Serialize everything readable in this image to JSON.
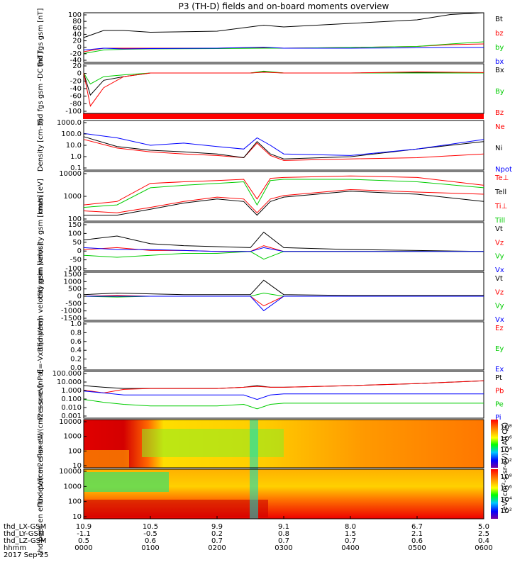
{
  "title": "P3 (TH-D) fields and on-board moments overview",
  "colorbar_label": "[eV/(cm²-s-sr-eV)] (All Qs)",
  "colorbar_ticks": [
    "10⁸",
    "10⁶",
    "10⁴",
    "10²"
  ],
  "bottom": {
    "labels": [
      "thd_LX-GSM",
      "thd_LY-GSM",
      "thd_LZ-GSM",
      "hhmm"
    ],
    "date": "2017 Sep 25",
    "columns": [
      {
        "lx": "10.9",
        "ly": "-1.1",
        "lz": "0.5",
        "hhmm": "0000"
      },
      {
        "lx": "10.5",
        "ly": "-0.5",
        "lz": "0.6",
        "hhmm": "0100"
      },
      {
        "lx": "9.9",
        "ly": "0.2",
        "lz": "0.7",
        "hhmm": "0200"
      },
      {
        "lx": "9.1",
        "ly": "0.8",
        "lz": "0.7",
        "hhmm": "0300"
      },
      {
        "lx": "8.0",
        "ly": "1.5",
        "lz": "0.7",
        "hhmm": "0400"
      },
      {
        "lx": "6.7",
        "ly": "2.1",
        "lz": "0.6",
        "hhmm": "0500"
      },
      {
        "lx": "5.0",
        "ly": "2.5",
        "lz": "0.4",
        "hhmm": "0600"
      }
    ]
  },
  "chart_data": [
    {
      "type": "line",
      "ylabel": "thd fgs gsm [nT]",
      "yticks": [
        "100",
        "80",
        "60",
        "40",
        "20",
        "0",
        "-20",
        "-40"
      ],
      "ylim": [
        -40,
        100
      ],
      "x": [
        0,
        0.3,
        0.6,
        1,
        2,
        2.7,
        3,
        4,
        5,
        5.5,
        6
      ],
      "series": [
        {
          "name": "Bt",
          "color": "#000000",
          "values": [
            30,
            50,
            50,
            45,
            48,
            65,
            60,
            70,
            80,
            95,
            100
          ]
        },
        {
          "name": "bz",
          "color": "#ff0000",
          "values": [
            -10,
            0,
            0,
            0,
            0,
            2,
            0,
            2,
            5,
            10,
            12
          ]
        },
        {
          "name": "by",
          "color": "#00cc00",
          "values": [
            -15,
            -5,
            -3,
            -2,
            -1,
            0,
            0,
            2,
            5,
            12,
            18
          ]
        },
        {
          "name": "bx",
          "color": "#0000ff",
          "values": [
            -5,
            0,
            -2,
            -1,
            0,
            3,
            0,
            0,
            1,
            2,
            2
          ]
        }
      ]
    },
    {
      "type": "line",
      "ylabel": "thd fgs gsm -DC [nT]",
      "yticks": [
        "20",
        "0",
        "-20",
        "-40",
        "-60",
        "-80",
        "-100"
      ],
      "ylim": [
        -110,
        25
      ],
      "x": [
        0,
        0.1,
        0.3,
        0.6,
        1,
        2.5,
        2.7,
        3,
        4,
        5,
        6
      ],
      "series": [
        {
          "name": "Bx",
          "color": "#000000",
          "values": [
            0,
            -60,
            -20,
            -10,
            0,
            0,
            3,
            0,
            0,
            2,
            0
          ]
        },
        {
          "name": "By",
          "color": "#00cc00",
          "values": [
            0,
            -30,
            -10,
            -5,
            0,
            0,
            5,
            0,
            0,
            0,
            0
          ]
        },
        {
          "name": "Bz",
          "color": "#ff0000",
          "values": [
            0,
            -90,
            -40,
            -10,
            0,
            0,
            2,
            0,
            0,
            3,
            1
          ]
        }
      ]
    },
    {
      "type": "line",
      "ylabel": "Density [cm-3]",
      "yticks": [
        "1000.0",
        "100.0",
        "10.0",
        "1.0",
        "0.1"
      ],
      "scale": "log",
      "ylim": [
        0.1,
        1000
      ],
      "x": [
        0,
        0.5,
        1,
        1.5,
        2,
        2.4,
        2.6,
        2.8,
        3,
        4,
        5,
        6
      ],
      "series": [
        {
          "name": "Ne",
          "color": "#ff0000",
          "values": [
            30,
            6,
            3,
            2,
            1.5,
            1,
            15,
            1.5,
            0.6,
            0.8,
            1,
            2
          ]
        },
        {
          "name": "Ni",
          "color": "#000000",
          "values": [
            50,
            8,
            4,
            3,
            2,
            1,
            20,
            2,
            0.8,
            1.2,
            5,
            20
          ]
        },
        {
          "name": "Npot",
          "color": "#0000ff",
          "values": [
            90,
            40,
            10,
            15,
            8,
            5,
            40,
            10,
            2,
            1.5,
            5,
            30
          ]
        }
      ]
    },
    {
      "type": "line",
      "ylabel": "mom [eV]",
      "yticks": [
        "10000",
        "1000",
        "100"
      ],
      "scale": "log",
      "ylim": [
        30,
        10000
      ],
      "x": [
        0,
        0.5,
        1,
        1.5,
        2,
        2.4,
        2.6,
        2.8,
        3,
        4,
        5,
        6
      ],
      "series": [
        {
          "name": "Te⊥",
          "color": "#ff0000",
          "values": [
            100,
            80,
            150,
            300,
            500,
            400,
            80,
            400,
            600,
            1200,
            900,
            700
          ]
        },
        {
          "name": "Tell",
          "color": "#000000",
          "values": [
            60,
            60,
            120,
            250,
            400,
            300,
            60,
            300,
            500,
            1000,
            700,
            300
          ]
        },
        {
          "name": "Ti⊥",
          "color": "#ff0000",
          "values": [
            200,
            300,
            2500,
            3000,
            3500,
            4000,
            400,
            4500,
            5000,
            6000,
            5000,
            2000
          ]
        },
        {
          "name": "Till",
          "color": "#00cc00",
          "values": [
            150,
            200,
            1500,
            2000,
            2500,
            3000,
            200,
            3500,
            4000,
            4000,
            3000,
            1500
          ]
        }
      ]
    },
    {
      "type": "line",
      "ylabel": "thd peim velocity gsm [km/s]",
      "yticks": [
        "150",
        "100",
        "50",
        "0",
        "-50",
        "-100"
      ],
      "ylim": [
        -100,
        150
      ],
      "x": [
        0,
        0.5,
        1,
        1.5,
        2,
        2.5,
        2.7,
        3,
        4,
        5,
        6
      ],
      "series": [
        {
          "name": "Vt",
          "color": "#000000",
          "values": [
            60,
            80,
            40,
            30,
            25,
            20,
            100,
            20,
            10,
            5,
            0
          ]
        },
        {
          "name": "Vz",
          "color": "#ff0000",
          "values": [
            10,
            20,
            5,
            5,
            0,
            0,
            30,
            0,
            0,
            0,
            0
          ]
        },
        {
          "name": "Vy",
          "color": "#00cc00",
          "values": [
            -20,
            -30,
            -20,
            -10,
            -10,
            0,
            -40,
            0,
            0,
            0,
            0
          ]
        },
        {
          "name": "Vx",
          "color": "#0000ff",
          "values": [
            20,
            10,
            10,
            5,
            0,
            0,
            20,
            0,
            0,
            0,
            0
          ]
        }
      ]
    },
    {
      "type": "line",
      "ylabel": "thd peem velocity gsm [km/s]",
      "yticks": [
        "1500",
        "1000",
        "500",
        "0",
        "-500",
        "-1000",
        "-1500"
      ],
      "ylim": [
        -1500,
        1500
      ],
      "x": [
        0,
        0.5,
        1,
        1.5,
        2,
        2.5,
        2.7,
        3,
        4,
        5,
        6
      ],
      "series": [
        {
          "name": "Vt",
          "color": "#000000",
          "values": [
            100,
            200,
            150,
            100,
            100,
            100,
            1000,
            100,
            50,
            50,
            50
          ]
        },
        {
          "name": "Vz",
          "color": "#ff0000",
          "values": [
            0,
            50,
            0,
            0,
            0,
            0,
            -600,
            0,
            0,
            0,
            0
          ]
        },
        {
          "name": "Vy",
          "color": "#00cc00",
          "values": [
            0,
            -50,
            0,
            0,
            0,
            0,
            200,
            0,
            0,
            0,
            0
          ]
        },
        {
          "name": "Vx",
          "color": "#0000ff",
          "values": [
            0,
            0,
            0,
            0,
            0,
            0,
            -900,
            0,
            0,
            0,
            0
          ]
        }
      ]
    },
    {
      "type": "line",
      "ylabel": "E=-VxB [mV/m]",
      "yticks": [
        "1.0",
        "0.8",
        "0.6",
        "0.4",
        "0.2",
        "0.0"
      ],
      "ylim": [
        0,
        1
      ],
      "series": [
        {
          "name": "Ez",
          "color": "#ff0000",
          "values": []
        },
        {
          "name": "Ey",
          "color": "#00cc00",
          "values": []
        },
        {
          "name": "Ex",
          "color": "#0000ff",
          "values": []
        }
      ]
    },
    {
      "type": "line",
      "ylabel": "Pressure [nPa]",
      "yticks": [
        "100.000",
        "10.000",
        "1.000",
        "0.100",
        "0.010",
        "0.001"
      ],
      "scale": "log",
      "ylim": [
        0.001,
        100
      ],
      "x": [
        0,
        0.3,
        0.6,
        1,
        2,
        2.4,
        2.6,
        2.8,
        3,
        4,
        5,
        6
      ],
      "series": [
        {
          "name": "Pt",
          "color": "#000000",
          "values": [
            3,
            2,
            1.5,
            1.5,
            1.5,
            2,
            3,
            2,
            2,
            3,
            5,
            10
          ]
        },
        {
          "name": "Pb",
          "color": "#ff0000",
          "values": [
            1,
            0.5,
            1.2,
            1.5,
            1.5,
            2,
            2.5,
            2,
            2,
            3,
            5,
            10
          ]
        },
        {
          "name": "Pe",
          "color": "#00cc00",
          "values": [
            0.1,
            0.05,
            0.03,
            0.02,
            0.02,
            0.03,
            0.01,
            0.03,
            0.04,
            0.04,
            0.04,
            0.04
          ]
        },
        {
          "name": "Pi",
          "color": "#0000ff",
          "values": [
            0.8,
            0.5,
            0.3,
            0.3,
            0.3,
            0.3,
            0.1,
            0.3,
            0.4,
            0.4,
            0.4,
            0.4
          ]
        }
      ]
    },
    {
      "type": "heatmap",
      "ylabel": "thd peir en eflux eV/(cm2-s-sr-eV)",
      "yticks": [
        "10000",
        "1000",
        "100",
        "10"
      ],
      "scale": "log",
      "ylim": [
        5,
        30000
      ]
    },
    {
      "type": "heatmap",
      "ylabel": "thd peer en eflux eV/(cm2-s-sr-eV)",
      "yticks": [
        "10000",
        "1000",
        "100",
        "10"
      ],
      "scale": "log",
      "ylim": [
        5,
        30000
      ]
    }
  ]
}
